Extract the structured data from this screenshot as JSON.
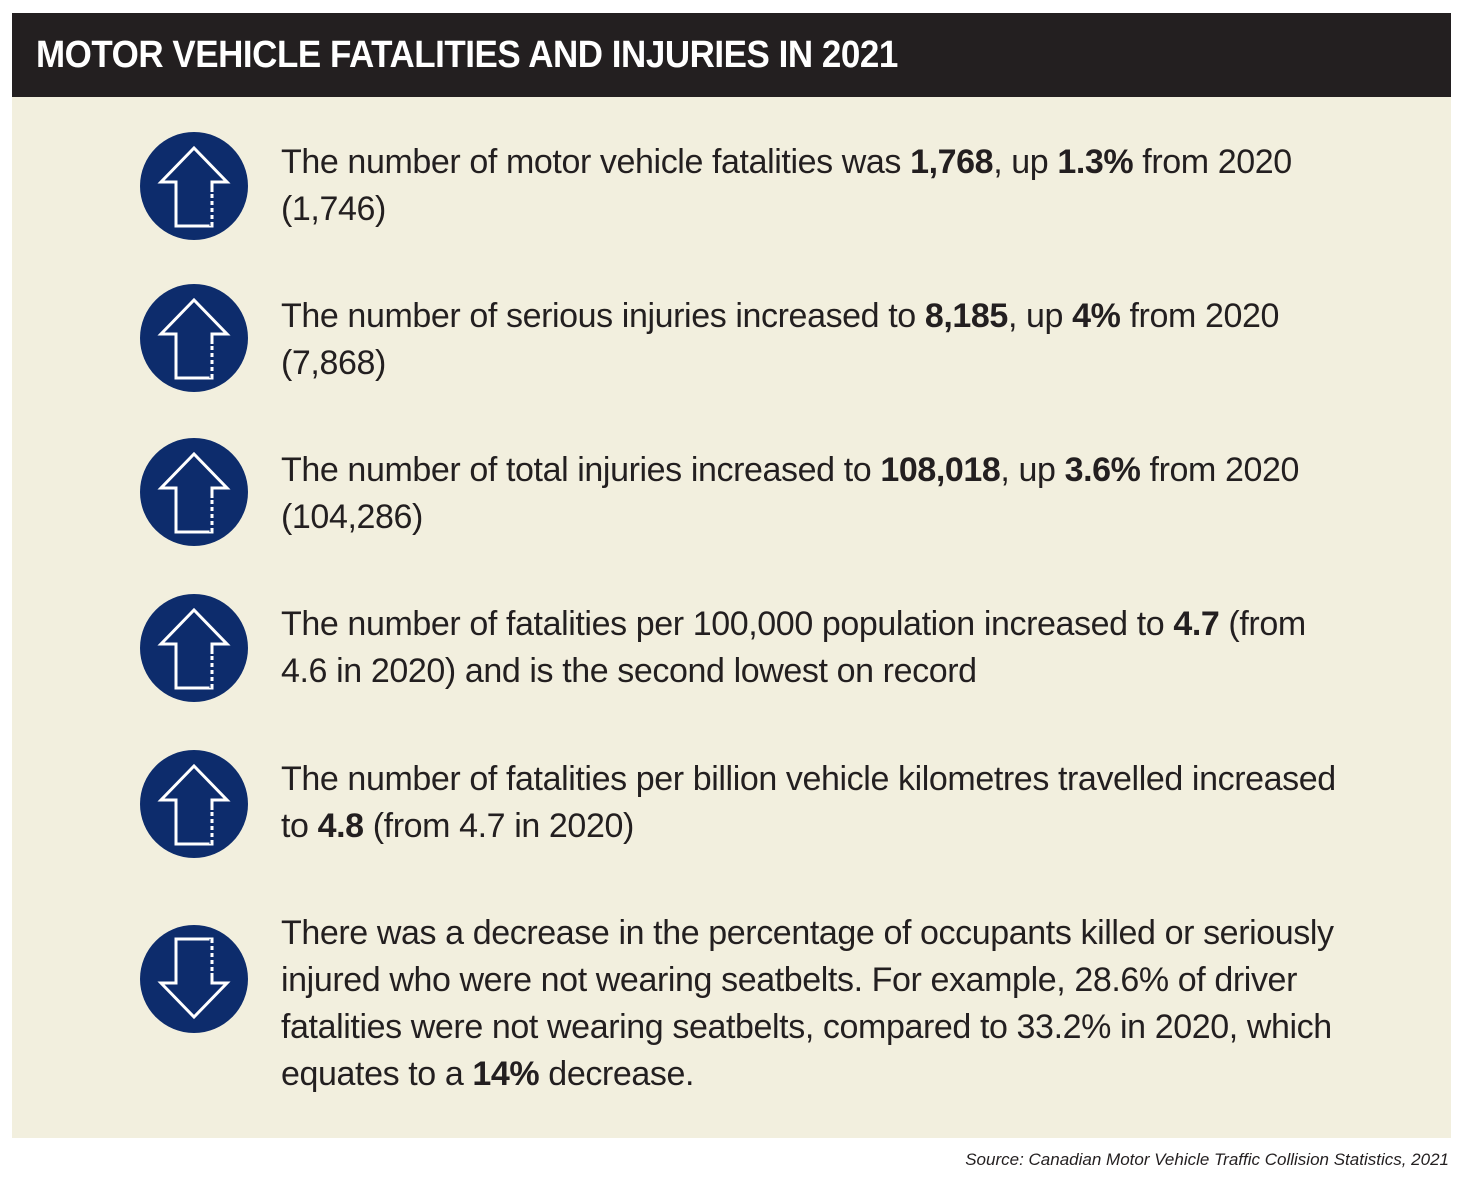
{
  "header": {
    "title": "MOTOR VEHICLE FATALITIES AND INJURIES IN 2021"
  },
  "colors": {
    "header_bg": "#231f20",
    "panel_bg": "#f2efde",
    "icon_fill": "#0d2c6c"
  },
  "items": [
    {
      "icon": "arrow-up-icon",
      "parts": [
        "The number of motor vehicle fatalities was ",
        "1,768",
        ", up ",
        "1.3%",
        " from 2020 (1,746)"
      ]
    },
    {
      "icon": "arrow-up-icon",
      "parts": [
        "The number of serious injuries increased to ",
        "8,185",
        ", up ",
        "4%",
        " from 2020 (7,868)"
      ]
    },
    {
      "icon": "arrow-up-icon",
      "parts": [
        "The number of total injuries increased to ",
        "108,018",
        ", up ",
        "3.6%",
        " from 2020 (104,286)"
      ]
    },
    {
      "icon": "arrow-up-icon",
      "parts": [
        "The number of fatalities per 100,000 population increased to ",
        "4.7",
        " (from 4.6 in 2020) and is the second lowest on record"
      ]
    },
    {
      "icon": "arrow-up-icon",
      "parts": [
        "The number of fatalities per billion vehicle kilometres travelled increased to ",
        "4.8",
        " (from 4.7 in 2020)"
      ]
    },
    {
      "icon": "arrow-down-icon",
      "parts": [
        "There was a decrease in the percentage of occupants killed or seriously injured who were not wearing seatbelts. For example, 28.6% of driver fatalities were not wearing seatbelts, compared to 33.2% in 2020, which equates to a ",
        "14%",
        " decrease."
      ]
    }
  ],
  "source": "Source: Canadian Motor Vehicle Traffic Collision Statistics, 2021"
}
